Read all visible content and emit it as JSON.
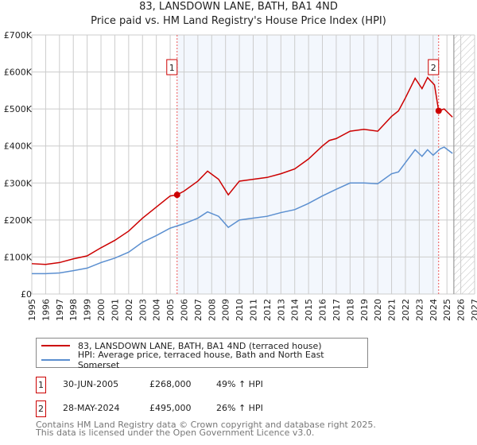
{
  "chart_data": {
    "type": "line",
    "title": "83, LANSDOWN LANE, BATH, BA1 4ND",
    "subtitle": "Price paid vs. HM Land Registry's House Price Index (HPI)",
    "xlim": [
      1995,
      2027
    ],
    "ylim": [
      0,
      700000
    ],
    "xticks": [
      "1995",
      "1996",
      "1997",
      "1998",
      "1999",
      "2000",
      "2001",
      "2002",
      "2003",
      "2004",
      "2005",
      "2006",
      "2007",
      "2008",
      "2009",
      "2010",
      "2011",
      "2012",
      "2013",
      "2014",
      "2015",
      "2016",
      "2017",
      "2018",
      "2019",
      "2020",
      "2021",
      "2022",
      "2023",
      "2024",
      "2025",
      "2026",
      "2027"
    ],
    "yticks": [
      {
        "v": 0,
        "label": "£0"
      },
      {
        "v": 100000,
        "label": "£100K"
      },
      {
        "v": 200000,
        "label": "£200K"
      },
      {
        "v": 300000,
        "label": "£300K"
      },
      {
        "v": 400000,
        "label": "£400K"
      },
      {
        "v": 500000,
        "label": "£500K"
      },
      {
        "v": 600000,
        "label": "£600K"
      },
      {
        "v": 700000,
        "label": "£700K"
      }
    ],
    "grid": true,
    "shaded_range": [
      2005.5,
      2024.4
    ],
    "forecast_hatch_from": 2025.5,
    "series": [
      {
        "name": "83, LANSDOWN LANE, BATH, BA1 4ND (terraced house)",
        "color": "#cc0000",
        "x": [
          1995,
          1996,
          1997,
          1998,
          1999,
          2000,
          2001,
          2002,
          2003,
          2004,
          2005,
          2005.5,
          2006,
          2007,
          2007.7,
          2008.5,
          2009.2,
          2010,
          2011,
          2012,
          2013,
          2014,
          2015,
          2016,
          2016.5,
          2017,
          2018,
          2019,
          2020,
          2021,
          2021.5,
          2022,
          2022.7,
          2023.2,
          2023.6,
          2024.1,
          2024.4,
          2024.8,
          2025.4
        ],
        "y": [
          82000,
          80000,
          85000,
          95000,
          103000,
          125000,
          145000,
          170000,
          205000,
          235000,
          265000,
          268000,
          278000,
          305000,
          332000,
          310000,
          268000,
          305000,
          310000,
          315000,
          325000,
          338000,
          365000,
          400000,
          415000,
          420000,
          440000,
          445000,
          440000,
          480000,
          495000,
          530000,
          583000,
          555000,
          585000,
          565000,
          495000,
          500000,
          478000
        ]
      },
      {
        "name": "HPI: Average price, terraced house, Bath and North East Somerset",
        "color": "#5b8fd0",
        "x": [
          1995,
          1996,
          1997,
          1998,
          1999,
          2000,
          2001,
          2002,
          2003,
          2004,
          2005,
          2006,
          2007,
          2007.7,
          2008.5,
          2009.2,
          2010,
          2011,
          2012,
          2013,
          2014,
          2015,
          2016,
          2017,
          2018,
          2019,
          2020,
          2021,
          2021.5,
          2022,
          2022.7,
          2023.2,
          2023.6,
          2024,
          2024.5,
          2024.8,
          2025.4
        ],
        "y": [
          55000,
          55000,
          57000,
          63000,
          70000,
          85000,
          97000,
          113000,
          140000,
          158000,
          178000,
          190000,
          205000,
          222000,
          210000,
          180000,
          200000,
          205000,
          210000,
          220000,
          228000,
          245000,
          265000,
          283000,
          300000,
          300000,
          298000,
          325000,
          330000,
          355000,
          390000,
          372000,
          390000,
          375000,
          392000,
          397000,
          380000
        ]
      }
    ],
    "sales": [
      {
        "label": "1",
        "x": 2005.5,
        "y": 268000,
        "date": "30-JUN-2005",
        "price": "£268,000",
        "hpi": "49% ↑ HPI"
      },
      {
        "label": "2",
        "x": 2024.4,
        "y": 495000,
        "date": "28-MAY-2024",
        "price": "£495,000",
        "hpi": "26% ↑ HPI"
      }
    ]
  },
  "footer": [
    "Contains HM Land Registry data © Crown copyright and database right 2025.",
    "This data is licensed under the Open Government Licence v3.0."
  ]
}
